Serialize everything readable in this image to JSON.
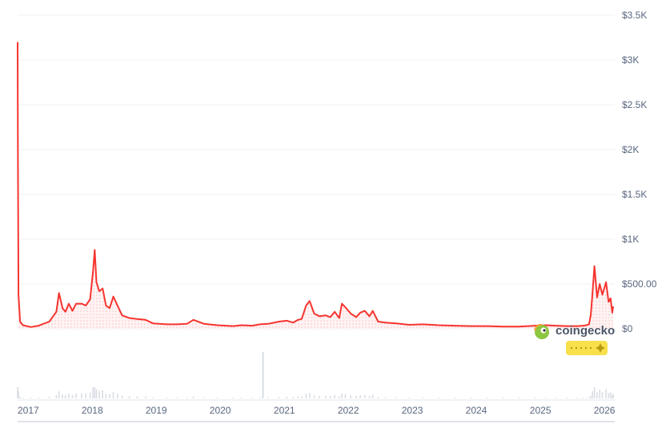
{
  "chart_data": {
    "type": "area",
    "y_axis": {
      "position": "right",
      "ylim": [
        0,
        3500
      ],
      "ticks": [
        0,
        500,
        1000,
        1500,
        2000,
        2500,
        3000,
        3500
      ],
      "tick_labels": [
        "$0",
        "$500.00",
        "$1K",
        "$1.5K",
        "$2K",
        "$2.5K",
        "$3K",
        "$3.5K"
      ]
    },
    "x_axis": {
      "xlim": [
        "2016-11-01",
        "2026-03-01"
      ],
      "ticks": [
        "2017-01-01",
        "2018-01-01",
        "2019-01-01",
        "2020-01-01",
        "2021-01-01",
        "2022-01-01",
        "2023-01-01",
        "2024-01-01",
        "2025-01-01",
        "2026-01-01"
      ],
      "tick_labels": [
        "2017",
        "2018",
        "2019",
        "2020",
        "2021",
        "2022",
        "2023",
        "2024",
        "2025",
        "2026"
      ]
    },
    "grid": true,
    "series": [
      {
        "color": "#f6342f",
        "x": [
          "2016-11-01",
          "2016-11-03",
          "2016-11-06",
          "2016-11-15",
          "2016-12-01",
          "2017-01-15",
          "2017-03-01",
          "2017-05-01",
          "2017-06-10",
          "2017-06-25",
          "2017-07-15",
          "2017-08-01",
          "2017-08-20",
          "2017-09-10",
          "2017-10-01",
          "2017-11-01",
          "2017-11-25",
          "2017-12-20",
          "2018-01-05",
          "2018-01-15",
          "2018-01-25",
          "2018-02-10",
          "2018-03-01",
          "2018-03-20",
          "2018-04-10",
          "2018-05-01",
          "2018-05-25",
          "2018-06-20",
          "2018-08-01",
          "2018-09-15",
          "2018-11-01",
          "2018-12-15",
          "2019-03-01",
          "2019-05-01",
          "2019-06-25",
          "2019-08-01",
          "2019-10-01",
          "2019-12-15",
          "2020-03-15",
          "2020-05-01",
          "2020-07-01",
          "2020-08-15",
          "2020-10-01",
          "2020-12-01",
          "2021-01-15",
          "2021-02-20",
          "2021-03-20",
          "2021-04-10",
          "2021-05-05",
          "2021-05-25",
          "2021-06-20",
          "2021-07-20",
          "2021-08-25",
          "2021-09-20",
          "2021-10-15",
          "2021-11-10",
          "2021-11-25",
          "2021-12-15",
          "2022-01-15",
          "2022-02-15",
          "2022-03-10",
          "2022-04-05",
          "2022-05-01",
          "2022-05-20",
          "2022-06-20",
          "2022-08-01",
          "2022-10-01",
          "2022-12-15",
          "2023-03-01",
          "2023-06-01",
          "2023-09-01",
          "2023-12-01",
          "2024-03-01",
          "2024-06-01",
          "2024-09-01",
          "2024-12-01",
          "2025-02-01",
          "2025-04-01",
          "2025-06-01",
          "2025-08-01",
          "2025-09-01",
          "2025-09-20",
          "2025-10-05",
          "2025-10-15",
          "2025-10-25",
          "2025-11-05",
          "2025-11-20",
          "2025-12-05",
          "2025-12-20",
          "2026-01-10",
          "2026-01-25",
          "2026-02-05",
          "2026-02-15",
          "2026-02-20"
        ],
        "y": [
          3200,
          1900,
          380,
          80,
          40,
          20,
          35,
          80,
          190,
          400,
          230,
          190,
          280,
          200,
          280,
          280,
          260,
          330,
          640,
          880,
          520,
          420,
          450,
          260,
          230,
          360,
          260,
          150,
          120,
          110,
          100,
          60,
          50,
          50,
          55,
          100,
          55,
          40,
          30,
          40,
          35,
          50,
          55,
          80,
          90,
          70,
          100,
          110,
          260,
          310,
          170,
          140,
          150,
          130,
          190,
          120,
          280,
          240,
          170,
          130,
          180,
          200,
          140,
          200,
          80,
          70,
          60,
          45,
          50,
          40,
          35,
          30,
          30,
          25,
          25,
          35,
          40,
          35,
          30,
          30,
          35,
          40,
          50,
          150,
          400,
          700,
          350,
          500,
          380,
          520,
          300,
          340,
          180,
          250
        ]
      }
    ]
  },
  "watermark": {
    "brand_text": "coingecko"
  },
  "volume": {
    "spike_x": "2020-09-01",
    "bar_color": "#d9dde3"
  }
}
